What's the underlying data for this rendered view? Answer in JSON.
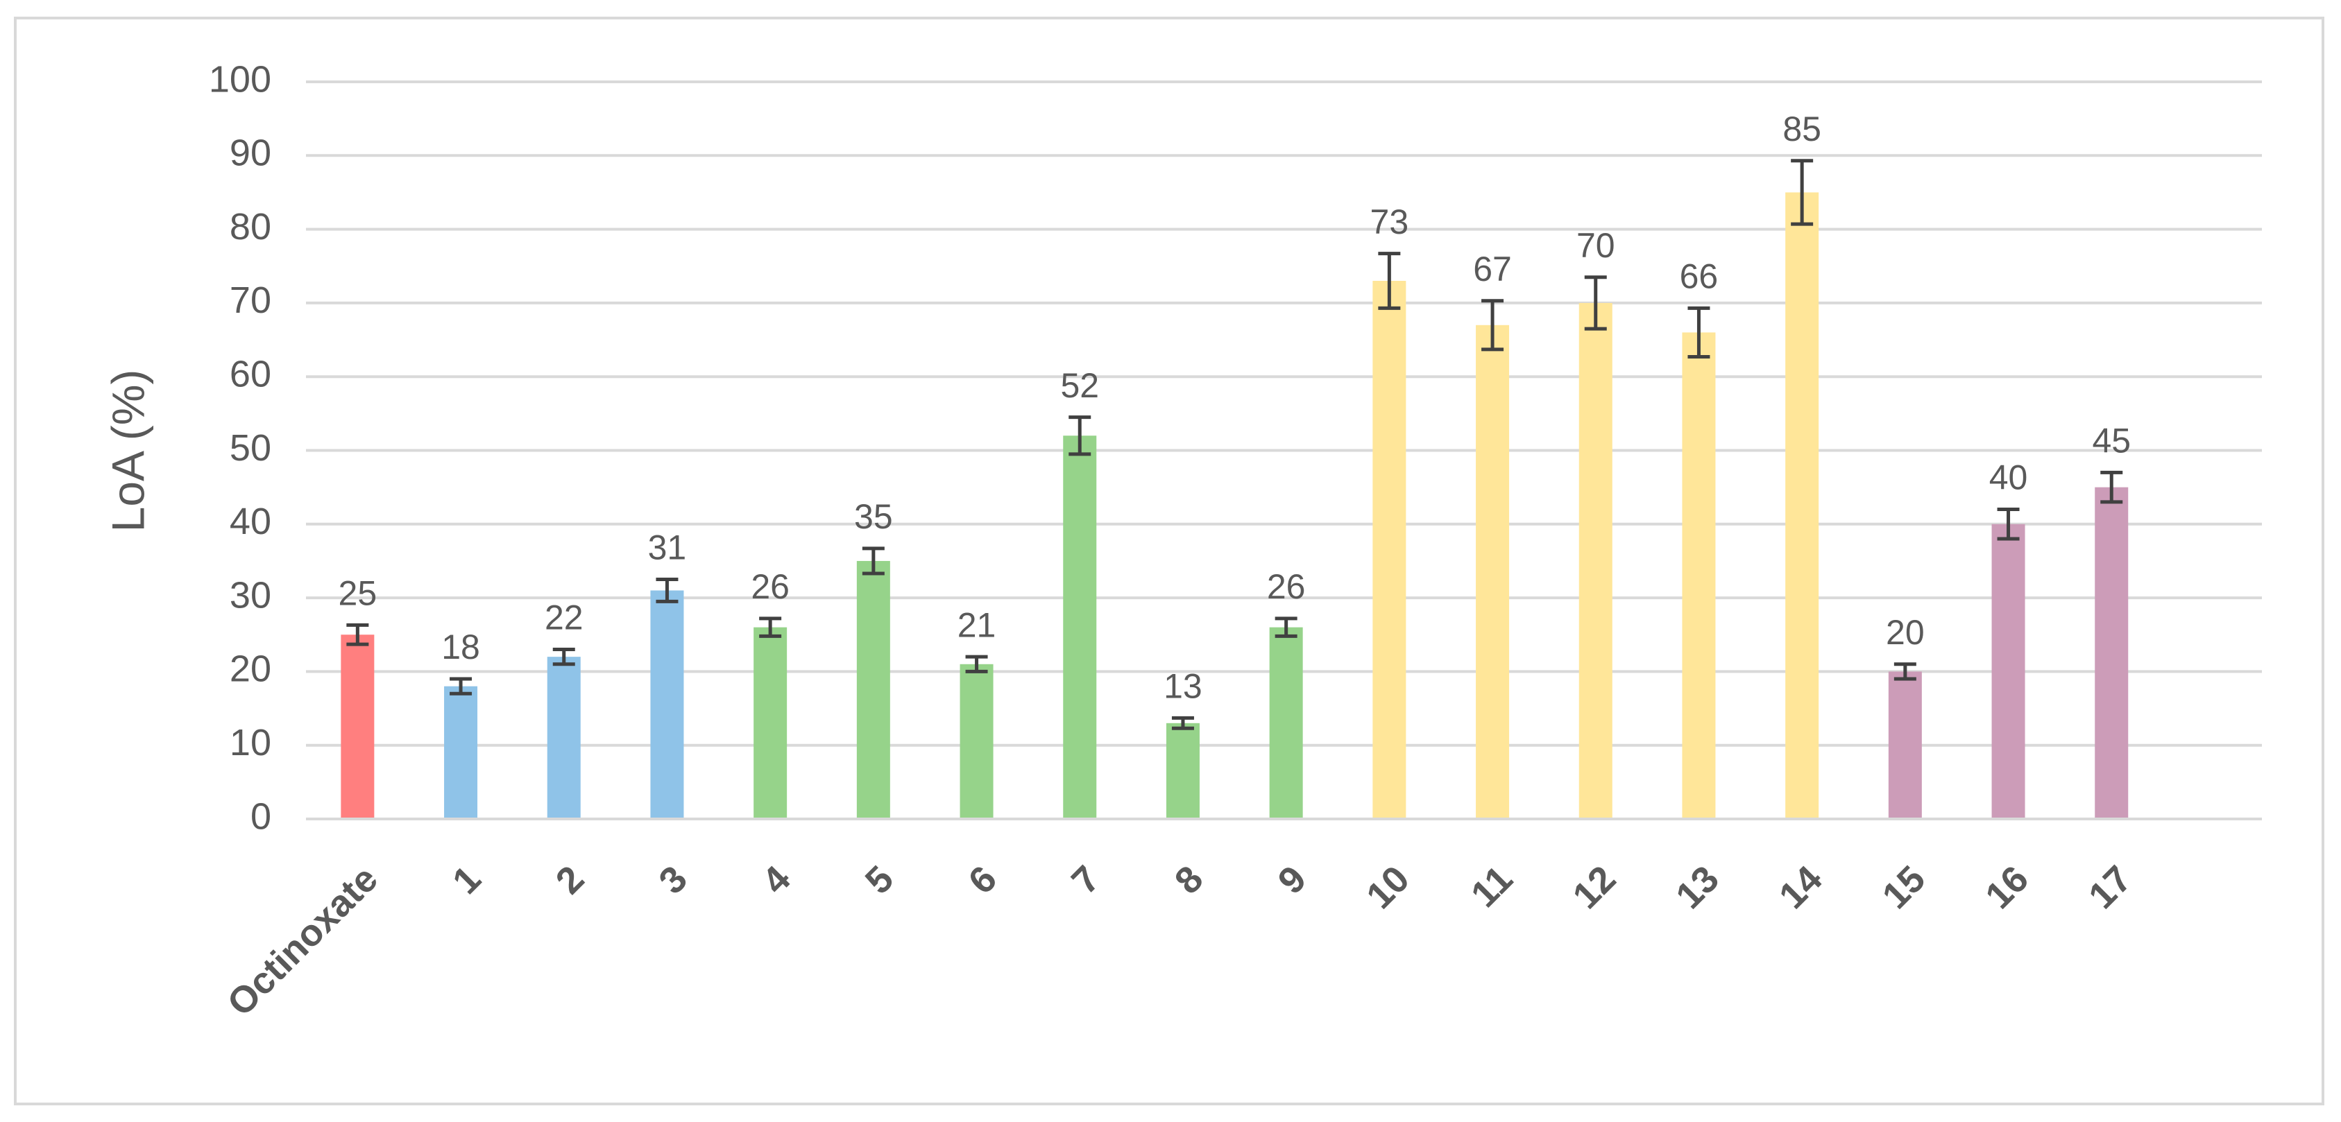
{
  "chart_data": {
    "type": "bar",
    "ylabel": "LoA (%)",
    "categories": [
      "Octinoxate",
      "1",
      "2",
      "3",
      "4",
      "5",
      "6",
      "7",
      "8",
      "9",
      "10",
      "11",
      "12",
      "13",
      "14",
      "15",
      "16",
      "17"
    ],
    "values": [
      25,
      18,
      22,
      31,
      26,
      35,
      21,
      52,
      13,
      26,
      73,
      67,
      70,
      66,
      85,
      20,
      40,
      45
    ],
    "errors": [
      1.3,
      1,
      1,
      1.5,
      1.2,
      1.7,
      1,
      2.5,
      0.7,
      1.2,
      3.7,
      3.3,
      3.5,
      3.3,
      4.3,
      1,
      2,
      2
    ],
    "colors": [
      "#ff7f7f",
      "#8fc3e8",
      "#8fc3e8",
      "#8fc3e8",
      "#96d38a",
      "#96d38a",
      "#96d38a",
      "#96d38a",
      "#96d38a",
      "#96d38a",
      "#ffe699",
      "#ffe699",
      "#ffe699",
      "#ffe699",
      "#ffe699",
      "#cc9cb8",
      "#cc9cb8",
      "#cc9cb8"
    ],
    "ylim": [
      0,
      100
    ],
    "yticks": [
      0,
      10,
      20,
      30,
      40,
      50,
      60,
      70,
      80,
      90,
      100
    ],
    "grid": true
  }
}
